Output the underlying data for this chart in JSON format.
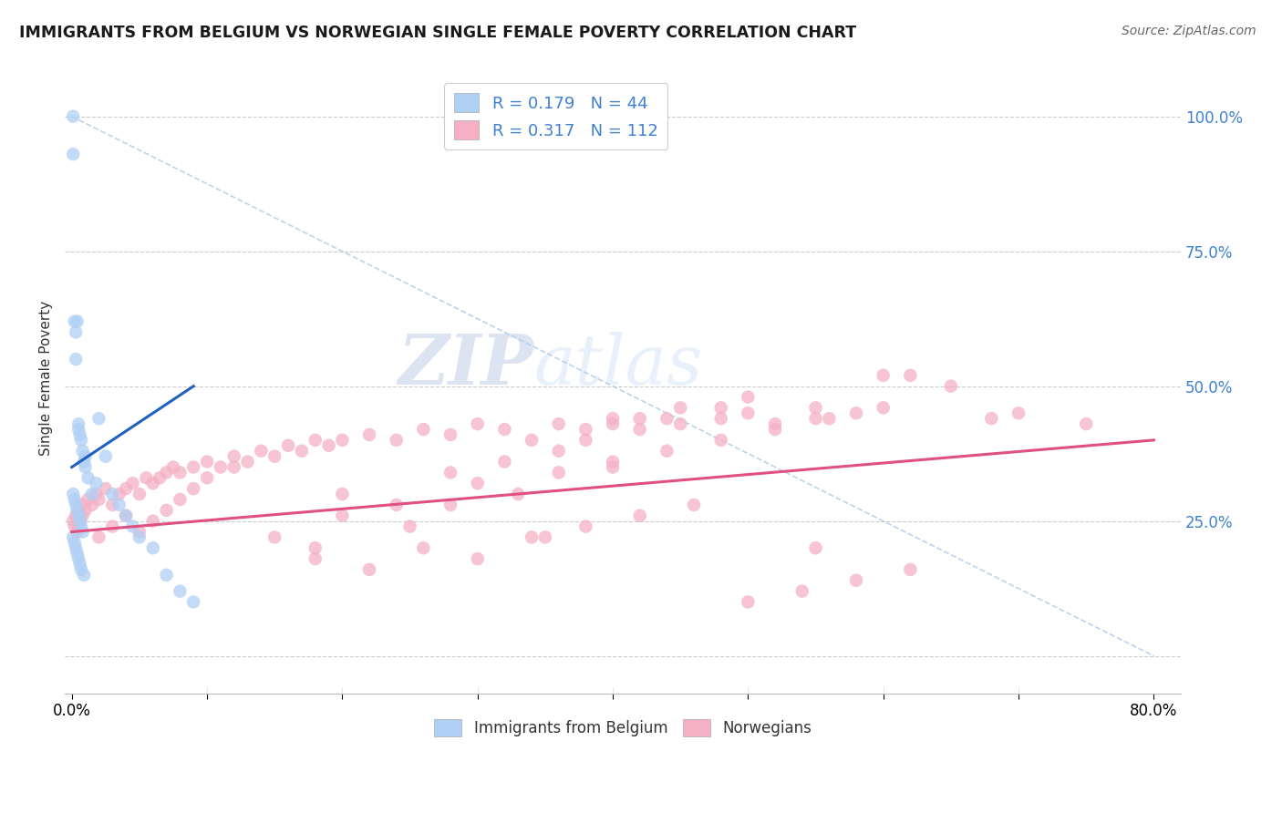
{
  "title": "IMMIGRANTS FROM BELGIUM VS NORWEGIAN SINGLE FEMALE POVERTY CORRELATION CHART",
  "source": "Source: ZipAtlas.com",
  "ylabel": "Single Female Poverty",
  "legend_labels": [
    "Immigrants from Belgium",
    "Norwegians"
  ],
  "legend_r": [
    0.179,
    0.317
  ],
  "legend_n": [
    44,
    112
  ],
  "belgium_color": "#afd0f5",
  "norwegian_color": "#f5b0c5",
  "belgium_line_color": "#2060c0",
  "norwegian_line_color": "#e05080",
  "diag_color": "#b0c8e8",
  "watermark_color": "#d0dff5",
  "belgium_x": [
    0.001,
    0.001,
    0.002,
    0.003,
    0.003,
    0.004,
    0.005,
    0.005,
    0.006,
    0.007,
    0.008,
    0.009,
    0.001,
    0.002,
    0.003,
    0.004,
    0.005,
    0.006,
    0.007,
    0.008,
    0.001,
    0.002,
    0.003,
    0.004,
    0.005,
    0.006,
    0.007,
    0.009,
    0.01,
    0.01,
    0.012,
    0.015,
    0.018,
    0.02,
    0.025,
    0.03,
    0.035,
    0.04,
    0.045,
    0.05,
    0.06,
    0.07,
    0.08,
    0.09
  ],
  "belgium_y": [
    1.0,
    0.93,
    0.62,
    0.6,
    0.55,
    0.62,
    0.43,
    0.42,
    0.41,
    0.4,
    0.38,
    0.36,
    0.3,
    0.29,
    0.28,
    0.27,
    0.26,
    0.25,
    0.24,
    0.23,
    0.22,
    0.21,
    0.2,
    0.19,
    0.18,
    0.17,
    0.16,
    0.15,
    0.37,
    0.35,
    0.33,
    0.3,
    0.32,
    0.44,
    0.37,
    0.3,
    0.28,
    0.26,
    0.24,
    0.22,
    0.2,
    0.15,
    0.12,
    0.1
  ],
  "norway_x": [
    0.001,
    0.002,
    0.003,
    0.004,
    0.005,
    0.006,
    0.007,
    0.008,
    0.01,
    0.012,
    0.015,
    0.018,
    0.02,
    0.025,
    0.03,
    0.035,
    0.04,
    0.045,
    0.05,
    0.055,
    0.06,
    0.065,
    0.07,
    0.075,
    0.08,
    0.09,
    0.1,
    0.11,
    0.12,
    0.13,
    0.14,
    0.15,
    0.16,
    0.17,
    0.18,
    0.19,
    0.2,
    0.22,
    0.24,
    0.26,
    0.28,
    0.3,
    0.32,
    0.34,
    0.36,
    0.38,
    0.4,
    0.42,
    0.45,
    0.48,
    0.5,
    0.52,
    0.55,
    0.58,
    0.6,
    0.62,
    0.65,
    0.68,
    0.7,
    0.75,
    0.02,
    0.03,
    0.04,
    0.05,
    0.06,
    0.07,
    0.08,
    0.09,
    0.1,
    0.12,
    0.15,
    0.18,
    0.2,
    0.25,
    0.28,
    0.3,
    0.33,
    0.36,
    0.4,
    0.44,
    0.48,
    0.52,
    0.56,
    0.6,
    0.4,
    0.45,
    0.5,
    0.55,
    0.38,
    0.42,
    0.28,
    0.32,
    0.36,
    0.4,
    0.2,
    0.24,
    0.44,
    0.48,
    0.35,
    0.55,
    0.18,
    0.22,
    0.26,
    0.3,
    0.34,
    0.38,
    0.42,
    0.46,
    0.5,
    0.54,
    0.58,
    0.62
  ],
  "norway_y": [
    0.25,
    0.24,
    0.26,
    0.23,
    0.27,
    0.25,
    0.28,
    0.26,
    0.27,
    0.29,
    0.28,
    0.3,
    0.29,
    0.31,
    0.28,
    0.3,
    0.31,
    0.32,
    0.3,
    0.33,
    0.32,
    0.33,
    0.34,
    0.35,
    0.34,
    0.35,
    0.36,
    0.35,
    0.37,
    0.36,
    0.38,
    0.37,
    0.39,
    0.38,
    0.4,
    0.39,
    0.4,
    0.41,
    0.4,
    0.42,
    0.41,
    0.43,
    0.42,
    0.4,
    0.43,
    0.42,
    0.43,
    0.44,
    0.43,
    0.44,
    0.45,
    0.43,
    0.44,
    0.45,
    0.52,
    0.52,
    0.5,
    0.44,
    0.45,
    0.43,
    0.22,
    0.24,
    0.26,
    0.23,
    0.25,
    0.27,
    0.29,
    0.31,
    0.33,
    0.35,
    0.22,
    0.2,
    0.26,
    0.24,
    0.28,
    0.32,
    0.3,
    0.34,
    0.36,
    0.38,
    0.4,
    0.42,
    0.44,
    0.46,
    0.44,
    0.46,
    0.48,
    0.46,
    0.4,
    0.42,
    0.34,
    0.36,
    0.38,
    0.35,
    0.3,
    0.28,
    0.44,
    0.46,
    0.22,
    0.2,
    0.18,
    0.16,
    0.2,
    0.18,
    0.22,
    0.24,
    0.26,
    0.28,
    0.1,
    0.12,
    0.14,
    0.16
  ],
  "xlim": [
    -0.005,
    0.82
  ],
  "ylim": [
    -0.07,
    1.1
  ],
  "yticks": [
    0.0,
    0.25,
    0.5,
    0.75,
    1.0
  ],
  "ytick_labels_right": [
    "",
    "25.0%",
    "50.0%",
    "75.0%",
    "100.0%"
  ],
  "xtick_positions": [
    0.0,
    0.1,
    0.2,
    0.3,
    0.4,
    0.5,
    0.6,
    0.7,
    0.8
  ],
  "belgium_line_x": [
    0.0,
    0.09
  ],
  "belgium_line_y": [
    0.35,
    0.5
  ],
  "norway_line_x": [
    0.0,
    0.8
  ],
  "norway_line_y": [
    0.23,
    0.4
  ],
  "diag_line_x": [
    0.0,
    0.8
  ],
  "diag_line_y": [
    1.0,
    0.0
  ]
}
